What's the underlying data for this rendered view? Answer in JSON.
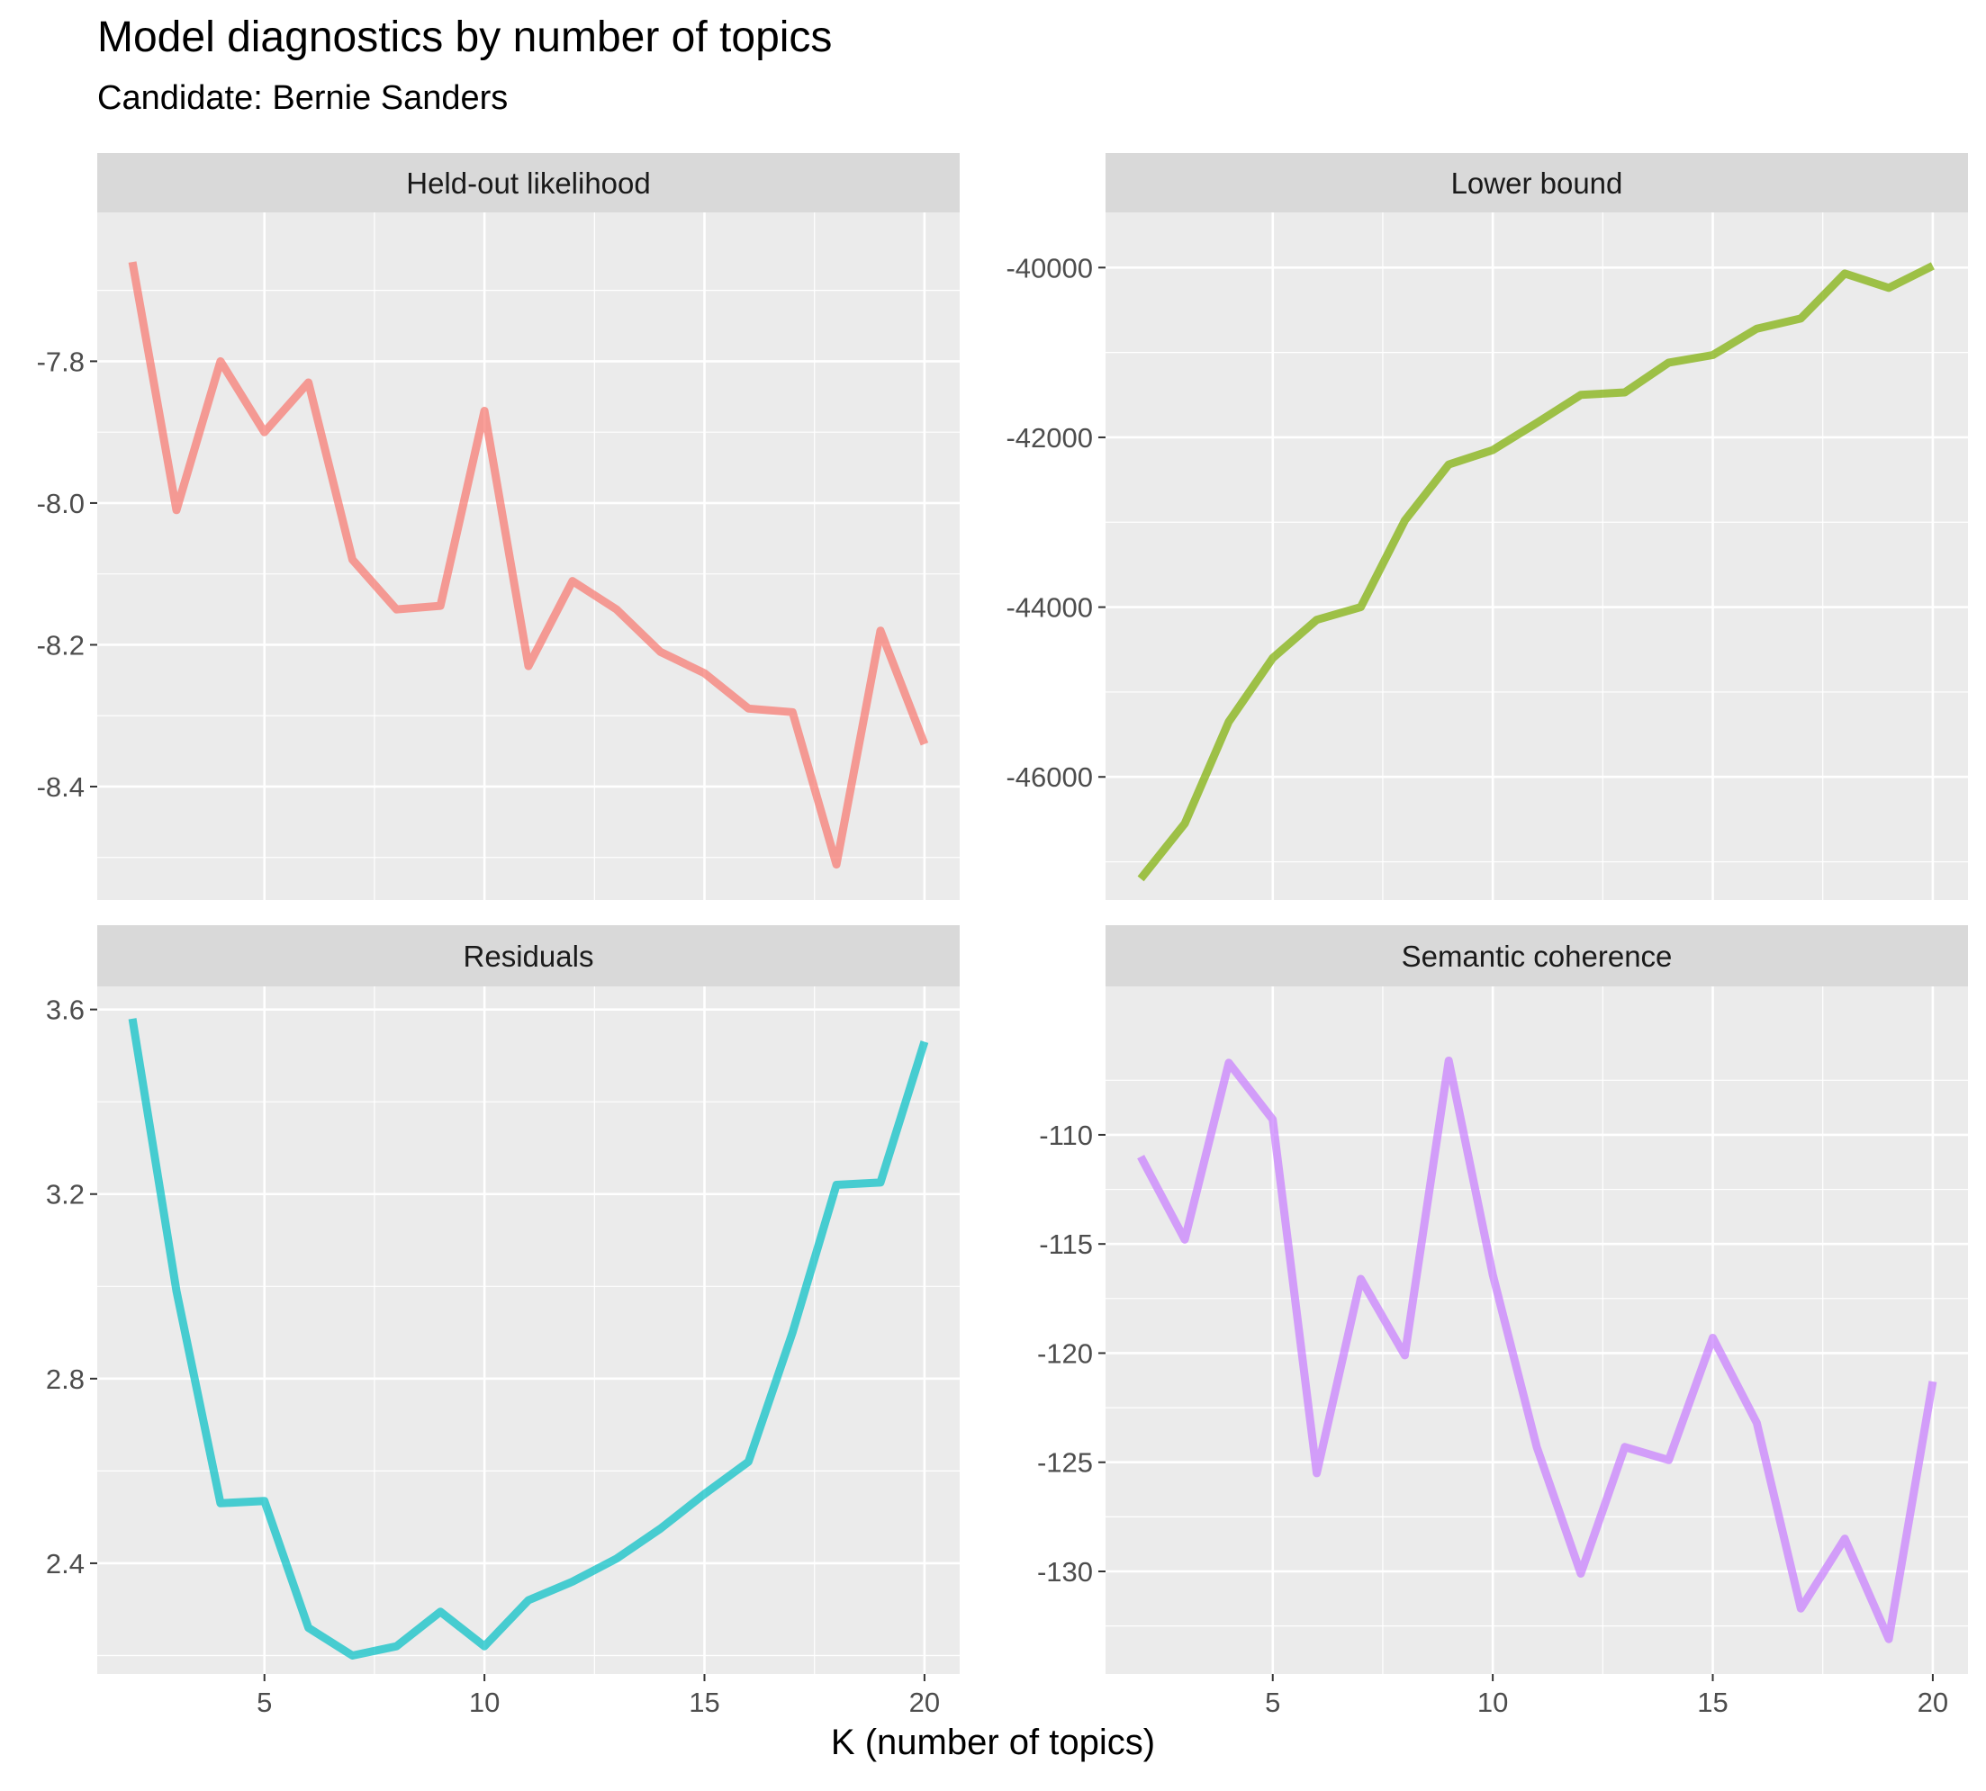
{
  "title": "Model diagnostics by number of topics",
  "subtitle": "Candidate: Bernie Sanders",
  "xlabel": "K (number of topics)",
  "chart_data": {
    "type": "line",
    "layout": "facet 2x2, free y scales",
    "x": [
      2,
      3,
      4,
      5,
      6,
      7,
      8,
      9,
      10,
      11,
      12,
      13,
      14,
      15,
      16,
      17,
      18,
      19,
      20
    ],
    "xlim": [
      1.2,
      20.8
    ],
    "x_ticks": [
      5,
      10,
      15,
      20
    ],
    "xlabel": "K (number of topics)",
    "grid": true,
    "legend": "none",
    "panels": [
      {
        "name": "Held-out likelihood",
        "color": "#F8766D",
        "ylim": [
          -8.56,
          -7.59
        ],
        "y_ticks": [
          -8.4,
          -8.2,
          -8.0,
          -7.8
        ],
        "y_tick_labels": [
          "-8.4",
          "-8.2",
          "-8.0",
          "-7.8"
        ],
        "values": [
          -7.66,
          -8.01,
          -7.8,
          -7.9,
          -7.83,
          -8.08,
          -8.15,
          -8.145,
          -7.87,
          -8.23,
          -8.11,
          -8.15,
          -8.21,
          -8.24,
          -8.29,
          -8.295,
          -8.51,
          -8.18,
          -8.34
        ]
      },
      {
        "name": "Lower bound",
        "color": "#7CAE00",
        "ylim": [
          -47450,
          -39350
        ],
        "y_ticks": [
          -46000,
          -44000,
          -42000,
          -40000
        ],
        "y_tick_labels": [
          "-46000",
          "-44000",
          "-42000",
          "-40000"
        ],
        "values": [
          -47200,
          -46550,
          -45350,
          -44600,
          -44150,
          -44000,
          -42980,
          -42320,
          -42150,
          -41830,
          -41500,
          -41470,
          -41120,
          -41030,
          -40720,
          -40600,
          -40070,
          -40240,
          -39980
        ]
      },
      {
        "name": "Residuals",
        "color": "#00BFC4",
        "ylim": [
          2.16,
          3.65
        ],
        "y_ticks": [
          2.4,
          2.8,
          3.2,
          3.6
        ],
        "y_tick_labels": [
          "2.4",
          "2.8",
          "3.2",
          "3.6"
        ],
        "values": [
          3.58,
          2.99,
          2.53,
          2.535,
          2.26,
          2.2,
          2.22,
          2.295,
          2.22,
          2.32,
          2.36,
          2.41,
          2.475,
          2.55,
          2.62,
          2.9,
          3.22,
          3.225,
          3.53
        ]
      },
      {
        "name": "Semantic coherence",
        "color": "#C77CFF",
        "ylim": [
          -134.7,
          -103.2
        ],
        "y_ticks": [
          -130,
          -125,
          -120,
          -115,
          -110
        ],
        "y_tick_labels": [
          "-130",
          "-125",
          "-120",
          "-115",
          "-110"
        ],
        "values": [
          -111,
          -114.8,
          -106.7,
          -109.3,
          -125.5,
          -116.6,
          -120.1,
          -106.6,
          -116.4,
          -124.3,
          -130.1,
          -124.3,
          -124.9,
          -119.3,
          -123.2,
          -131.7,
          -128.5,
          -133.1,
          -121.3
        ]
      }
    ]
  }
}
